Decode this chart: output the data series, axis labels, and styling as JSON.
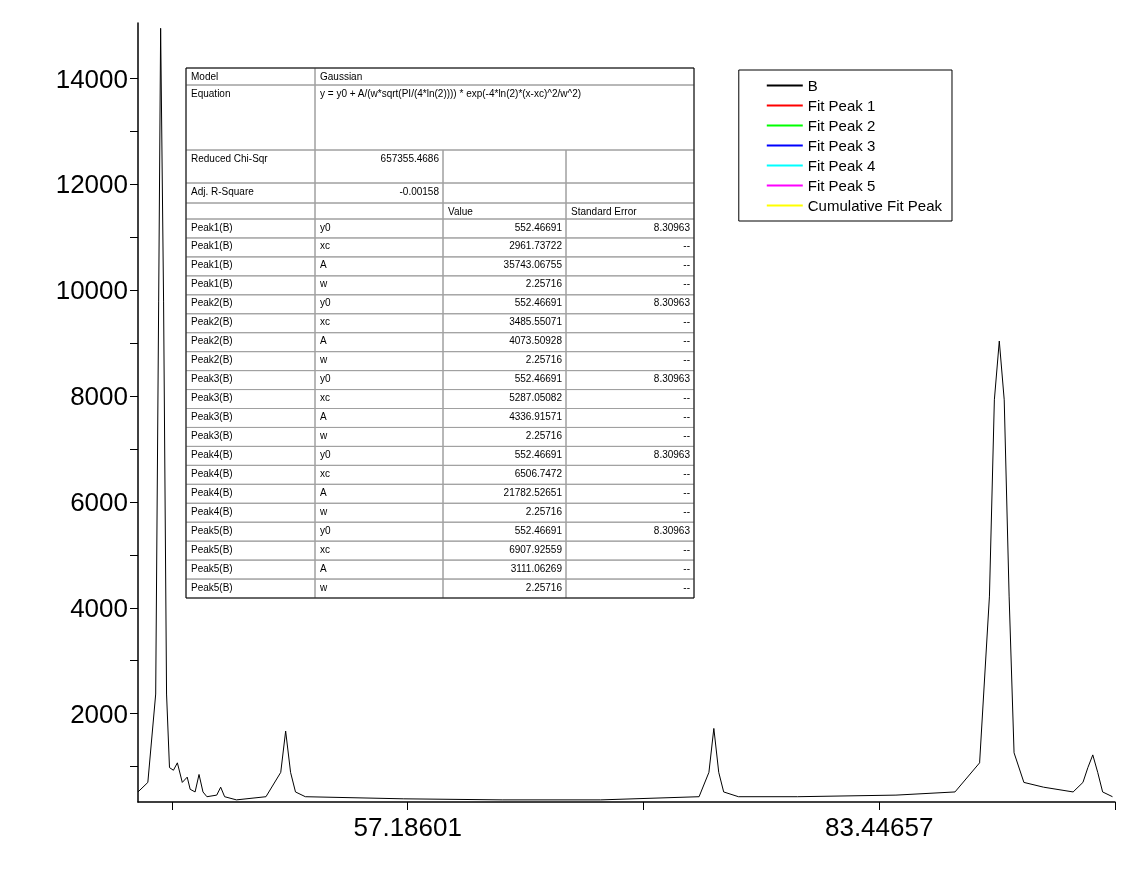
{
  "chart_data": {
    "type": "line",
    "xlim": [
      42.164,
      96.58
    ],
    "xticks": [
      {
        "value": 44.05573,
        "label": null
      },
      57.18601,
      {
        "value": 70.31629,
        "label": null
      },
      83.44657,
      {
        "value": 96.57685,
        "label": null
      }
    ],
    "ylim": [
      330,
      15050
    ],
    "yticks": [
      {
        "value": 1000,
        "label": null
      },
      2000,
      {
        "value": 3000,
        "label": null
      },
      4000,
      {
        "value": 5000,
        "label": null
      },
      6000,
      {
        "value": 7000,
        "label": null
      },
      8000,
      {
        "value": 9000,
        "label": null
      },
      10000,
      {
        "value": 11000,
        "label": null
      },
      12000,
      {
        "value": 13000,
        "label": null
      },
      14000
    ],
    "grid": false,
    "legend": "top right",
    "marker": "none",
    "series": [
      {
        "name": "B",
        "color": "#000000",
        "x": [
          42.164,
          42.712,
          43.15,
          43.315,
          43.425,
          43.589,
          43.754,
          43.918,
          44.137,
          44.357,
          44.631,
          44.905,
          45.07,
          45.344,
          45.563,
          45.783,
          46.002,
          46.55,
          46.769,
          46.989,
          47.647,
          49.291,
          50.114,
          50.388,
          50.662,
          50.936,
          51.484,
          56.967,
          62.449,
          67.932,
          73.414,
          73.962,
          74.236,
          74.51,
          74.785,
          75.607,
          78.897,
          84.379,
          87.668,
          89.039,
          89.587,
          89.861,
          90.135,
          90.409,
          90.683,
          90.958,
          91.506,
          92.602,
          94.247,
          94.795,
          95.069,
          95.343,
          95.617,
          95.891,
          96.44
        ],
        "values": [
          520,
          700,
          2370,
          9780,
          14950,
          9780,
          2370,
          980,
          930,
          1070,
          700,
          800,
          570,
          520,
          850,
          520,
          430,
          460,
          610,
          430,
          370,
          430,
          890,
          1670,
          890,
          520,
          430,
          390,
          370,
          370,
          430,
          890,
          1720,
          890,
          520,
          430,
          430,
          460,
          520,
          1070,
          4220,
          7930,
          9040,
          7930,
          4220,
          1260,
          700,
          610,
          520,
          700,
          980,
          1220,
          890,
          520,
          430
        ]
      },
      {
        "name": "Fit Peak 1",
        "color": "#ff0000"
      },
      {
        "name": "Fit Peak 2",
        "color": "#00ff00"
      },
      {
        "name": "Fit Peak 3",
        "color": "#0000ff"
      },
      {
        "name": "Fit Peak 4",
        "color": "#00ffff"
      },
      {
        "name": "Fit Peak 5",
        "color": "#ff00ff"
      },
      {
        "name": "Cumulative Fit Peak",
        "color": "#ffff00"
      }
    ],
    "annotations": [
      "Model",
      "Gaussian",
      "Equation",
      "y = y0 + A/(w*sqrt(PI/(4*ln(2)))) * exp(-4*ln(2)*(x-xc)^2/w^2)",
      "Reduced Chi-Sqr",
      "657355.4686",
      "Adj. R-Square",
      "-0.00158",
      "Value",
      "Standard Error",
      "Peak1(B)",
      "y0",
      "552.46691",
      "8.30963",
      "Peak1(B)",
      "xc",
      "2961.73722",
      "--",
      "Peak1(B)",
      "A",
      "35743.06755",
      "--",
      "Peak1(B)",
      "w",
      "2.25716",
      "--",
      "Peak2(B)",
      "y0",
      "552.46691",
      "8.30963",
      "Peak2(B)",
      "xc",
      "3485.55071",
      "--",
      "Peak2(B)",
      "A",
      "4073.50928",
      "--",
      "Peak2(B)",
      "w",
      "2.25716",
      "--",
      "Peak3(B)",
      "y0",
      "552.46691",
      "8.30963",
      "Peak3(B)",
      "xc",
      "5287.05082",
      "--",
      "Peak3(B)",
      "A",
      "4336.91571",
      "--",
      "Peak3(B)",
      "w",
      "2.25716",
      "--",
      "Peak4(B)",
      "y0",
      "552.46691",
      "8.30963",
      "Peak4(B)",
      "xc",
      "6506.7472",
      "--",
      "Peak4(B)",
      "A",
      "21782.52651",
      "--",
      "Peak4(B)",
      "w",
      "2.25716",
      "--",
      "Peak5(B)",
      "y0",
      "552.46691",
      "8.30963",
      "Peak5(B)",
      "xc",
      "6907.92559",
      "--",
      "Peak5(B)",
      "A",
      "3111.06269",
      "--",
      "Peak5(B)",
      "w",
      "2.25716",
      "--"
    ]
  }
}
